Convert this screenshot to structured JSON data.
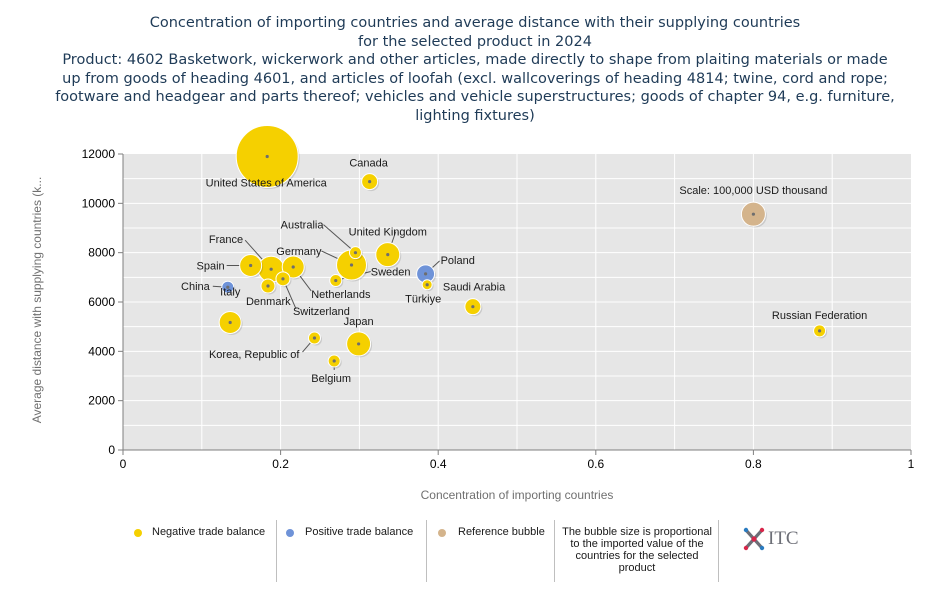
{
  "title_lines": [
    "Concentration of importing countries and average distance with their supplying countries",
    "for the selected product in 2024",
    "Product: 4602 Basketwork, wickerwork and other articles, made directly to shape from plaiting materials or made",
    "up from goods of heading 4601, and articles of loofah (excl. wallcoverings of heading 4814; twine, cord and rope;",
    "footware and headgear and parts thereof; vehicles and vehicle superstructures; goods of chapter 94, e.g. furniture,",
    "lighting fixtures)"
  ],
  "chart_data": {
    "type": "scatter",
    "xlabel": "Concentration of importing countries",
    "ylabel": "Average  distance  with  supplying  countries  (k...",
    "xlim": [
      0,
      1
    ],
    "ylim": [
      0,
      12000
    ],
    "x_ticks": [
      "0",
      "0.2",
      "0.4",
      "0.6",
      "0.8",
      "1"
    ],
    "y_ticks": [
      "0",
      "2000",
      "4000",
      "6000",
      "8000",
      "10000",
      "12000"
    ],
    "grid": true,
    "colors": {
      "negative": "#f5d000",
      "positive": "#6f93d8",
      "reference": "#d4b48c",
      "plot_bg": "#e6e6e6"
    },
    "points": [
      {
        "name": "United States of America",
        "x": 0.183,
        "y": 11900,
        "r": 31,
        "cat": "negative"
      },
      {
        "name": "Canada",
        "x": 0.313,
        "y": 10880,
        "r": 8,
        "cat": "negative"
      },
      {
        "name": "Scale: 100,000 USD thousand",
        "x": 0.8,
        "y": 9560,
        "r": 12,
        "cat": "reference"
      },
      {
        "name": "United Kingdom",
        "x": 0.336,
        "y": 7920,
        "r": 12,
        "cat": "negative"
      },
      {
        "name": "Australia",
        "x": 0.295,
        "y": 8000,
        "r": 6,
        "cat": "negative"
      },
      {
        "name": "Poland",
        "x": 0.384,
        "y": 7140,
        "r": 9,
        "cat": "positive"
      },
      {
        "name": "Germany",
        "x": 0.29,
        "y": 7500,
        "r": 15,
        "cat": "negative"
      },
      {
        "name": "France",
        "x": 0.188,
        "y": 7330,
        "r": 13,
        "cat": "negative"
      },
      {
        "name": "Spain",
        "x": 0.162,
        "y": 7480,
        "r": 11,
        "cat": "negative"
      },
      {
        "name": "Netherlands",
        "x": 0.216,
        "y": 7420,
        "r": 11,
        "cat": "negative"
      },
      {
        "name": "Sweden",
        "x": 0.27,
        "y": 6870,
        "r": 6,
        "cat": "negative"
      },
      {
        "name": "Switzerland",
        "x": 0.203,
        "y": 6940,
        "r": 7,
        "cat": "negative"
      },
      {
        "name": "China",
        "x": 0.133,
        "y": 6600,
        "r": 6,
        "cat": "positive"
      },
      {
        "name": "Denmark",
        "x": 0.184,
        "y": 6650,
        "r": 7,
        "cat": "negative"
      },
      {
        "name": "Türkiye",
        "x": 0.386,
        "y": 6700,
        "r": 5,
        "cat": "negative"
      },
      {
        "name": "Saudi Arabia",
        "x": 0.444,
        "y": 5810,
        "r": 8,
        "cat": "negative"
      },
      {
        "name": "Italy",
        "x": 0.136,
        "y": 5170,
        "r": 11,
        "cat": "negative"
      },
      {
        "name": "Russian Federation",
        "x": 0.884,
        "y": 4830,
        "r": 6,
        "cat": "negative"
      },
      {
        "name": "Korea, Republic of",
        "x": 0.243,
        "y": 4540,
        "r": 6,
        "cat": "negative"
      },
      {
        "name": "Japan",
        "x": 0.299,
        "y": 4300,
        "r": 12,
        "cat": "negative"
      },
      {
        "name": "Belgium",
        "x": 0.268,
        "y": 3610,
        "r": 6,
        "cat": "negative"
      }
    ]
  },
  "legend": {
    "negative": "Negative trade balance",
    "positive": "Positive trade balance",
    "reference": "Reference bubble",
    "note": "The bubble size is proportional to the imported value of the countries for the selected product"
  },
  "logo_text": "ITC"
}
